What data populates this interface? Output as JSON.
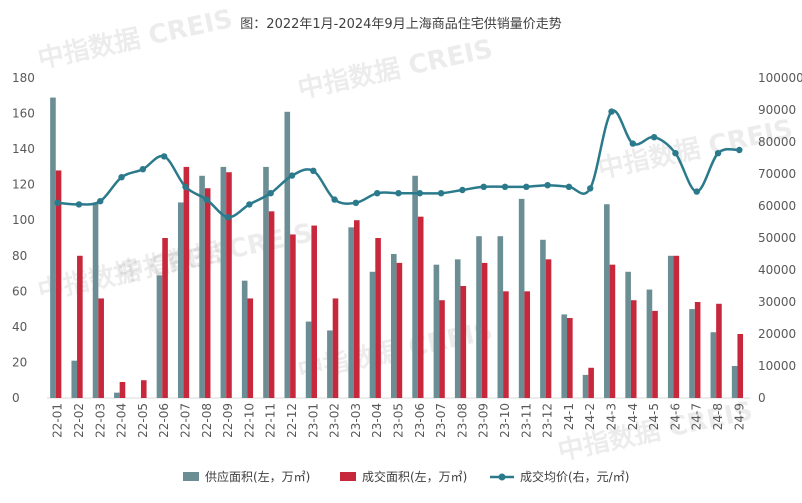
{
  "chart_data": {
    "type": "bar",
    "title": "图：2022年1月-2024年9月上海商品住宅供销量价走势",
    "watermark": "中指数据 CREIS",
    "categories": [
      "22-01",
      "22-02",
      "22-03",
      "22-04",
      "22-05",
      "22-06",
      "22-07",
      "22-08",
      "22-09",
      "22-10",
      "22-11",
      "22-12",
      "23-01",
      "23-02",
      "23-03",
      "23-04",
      "23-05",
      "23-06",
      "23-07",
      "23-08",
      "23-09",
      "23-10",
      "23-11",
      "23-12",
      "24-1",
      "24-2",
      "24-3",
      "24-4",
      "24-5",
      "24-6",
      "24-7",
      "24-8",
      "24-9"
    ],
    "series": [
      {
        "name": "供应面积(左，万㎡)",
        "type": "bar",
        "axis": "left",
        "color": "#6a8e94",
        "values": [
          169,
          21,
          110,
          3,
          0,
          69,
          110,
          125,
          130,
          66,
          130,
          161,
          43,
          38,
          96,
          71,
          81,
          125,
          75,
          78,
          91,
          91,
          112,
          89,
          47,
          13,
          109,
          71,
          61,
          80,
          50,
          37,
          18
        ]
      },
      {
        "name": "成交面积(左，万㎡)",
        "type": "bar",
        "axis": "left",
        "color": "#c8283c",
        "values": [
          128,
          80,
          56,
          9,
          10,
          90,
          130,
          118,
          127,
          56,
          105,
          92,
          97,
          56,
          100,
          90,
          76,
          102,
          55,
          63,
          76,
          60,
          60,
          78,
          45,
          17,
          75,
          55,
          49,
          80,
          54,
          53,
          36
        ]
      },
      {
        "name": "成交均价(右，元/㎡)",
        "type": "line",
        "axis": "right",
        "color": "#2a7a8c",
        "values": [
          61000,
          60500,
          61500,
          69000,
          71500,
          75500,
          66000,
          62000,
          56500,
          60500,
          64000,
          69500,
          71000,
          62000,
          61000,
          64000,
          64000,
          64000,
          64000,
          65000,
          66000,
          66000,
          66000,
          66500,
          66000,
          65500,
          89500,
          79500,
          81500,
          76500,
          64500,
          76500,
          77500
        ]
      }
    ],
    "y_left": {
      "min": 0,
      "max": 180,
      "ticks": [
        0,
        20,
        40,
        60,
        80,
        100,
        120,
        140,
        160,
        180
      ]
    },
    "y_right": {
      "min": 0,
      "max": 100000,
      "ticks": [
        0,
        10000,
        20000,
        30000,
        40000,
        50000,
        60000,
        70000,
        80000,
        90000,
        100000
      ]
    },
    "grid": false,
    "legend_position": "bottom"
  }
}
